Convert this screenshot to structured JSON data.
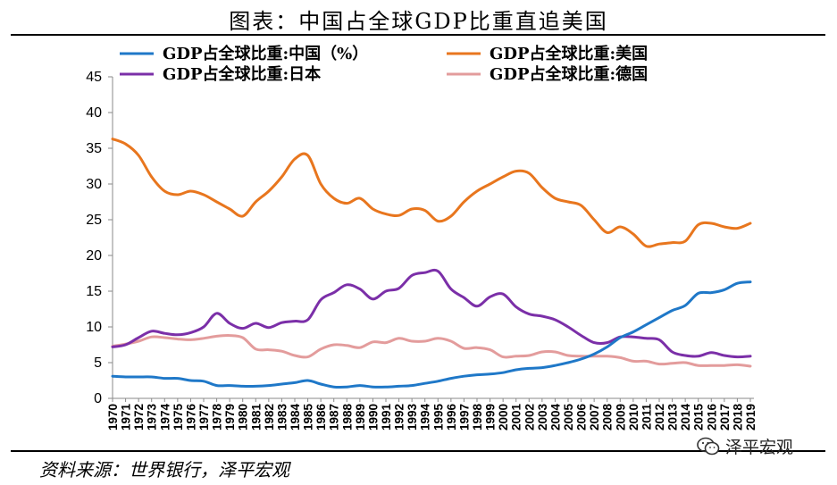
{
  "header": {
    "title": "图表：中国占全球GDP比重直追美国"
  },
  "footer": {
    "source": "资料来源：世界银行，泽平宏观",
    "watermark": "泽平宏观"
  },
  "chart_data": {
    "type": "line",
    "title": "图表：中国占全球GDP比重直追美国",
    "xlabel": "",
    "ylabel": "",
    "ylim": [
      0,
      45
    ],
    "yticks": [
      0,
      5,
      10,
      15,
      20,
      25,
      30,
      35,
      40,
      45
    ],
    "grid": false,
    "legend_position": "top",
    "categories": [
      "1970",
      "1971",
      "1972",
      "1973",
      "1974",
      "1975",
      "1976",
      "1977",
      "1978",
      "1979",
      "1980",
      "1981",
      "1982",
      "1983",
      "1984",
      "1985",
      "1986",
      "1987",
      "1988",
      "1989",
      "1990",
      "1991",
      "1992",
      "1993",
      "1994",
      "1995",
      "1996",
      "1997",
      "1998",
      "1999",
      "2000",
      "2001",
      "2002",
      "2003",
      "2004",
      "2005",
      "2006",
      "2007",
      "2008",
      "2009",
      "2010",
      "2011",
      "2012",
      "2013",
      "2014",
      "2015",
      "2016",
      "2017",
      "2018",
      "2019"
    ],
    "series": [
      {
        "name": "GDP占全球比重:中国（%）",
        "color": "#1f78c8",
        "values": [
          3.1,
          3.0,
          3.0,
          3.0,
          2.8,
          2.8,
          2.5,
          2.4,
          1.8,
          1.8,
          1.7,
          1.7,
          1.8,
          2.0,
          2.2,
          2.5,
          2.0,
          1.6,
          1.6,
          1.8,
          1.6,
          1.6,
          1.7,
          1.8,
          2.1,
          2.4,
          2.8,
          3.1,
          3.3,
          3.4,
          3.6,
          4.0,
          4.2,
          4.3,
          4.6,
          5.0,
          5.5,
          6.2,
          7.2,
          8.5,
          9.3,
          10.3,
          11.3,
          12.3,
          13.0,
          14.7,
          14.8,
          15.2,
          16.1,
          16.3
        ]
      },
      {
        "name": "GDP占全球比重:美国",
        "color": "#e8761e",
        "values": [
          36.3,
          35.6,
          34.0,
          31.0,
          29.0,
          28.5,
          29.0,
          28.5,
          27.5,
          26.5,
          25.5,
          27.5,
          29.0,
          31.0,
          33.5,
          34.0,
          30.0,
          28.0,
          27.3,
          28.0,
          26.5,
          25.8,
          25.6,
          26.5,
          26.3,
          24.8,
          25.5,
          27.5,
          29.0,
          30.0,
          31.0,
          31.8,
          31.5,
          29.5,
          28.0,
          27.5,
          27.0,
          25.0,
          23.2,
          24.0,
          23.0,
          21.3,
          21.6,
          21.8,
          22.0,
          24.3,
          24.5,
          24.0,
          23.8,
          24.5
        ]
      },
      {
        "name": "GDP占全球比重:日本",
        "color": "#7b2fa8",
        "values": [
          7.2,
          7.5,
          8.5,
          9.4,
          9.1,
          8.9,
          9.2,
          10.0,
          11.9,
          10.5,
          9.8,
          10.5,
          9.9,
          10.6,
          10.8,
          11.0,
          13.8,
          14.8,
          15.9,
          15.3,
          13.9,
          15.0,
          15.4,
          17.2,
          17.6,
          17.8,
          15.3,
          14.1,
          12.9,
          14.2,
          14.6,
          12.8,
          11.8,
          11.5,
          11.0,
          10.0,
          8.8,
          7.8,
          7.8,
          8.6,
          8.6,
          8.4,
          8.2,
          6.5,
          6.0,
          5.9,
          6.4,
          6.0,
          5.8,
          5.9
        ]
      },
      {
        "name": "GDP占全球比重:德国",
        "color": "#e39c9c",
        "values": [
          7.3,
          7.6,
          8.0,
          8.6,
          8.5,
          8.3,
          8.2,
          8.4,
          8.7,
          8.8,
          8.5,
          6.9,
          6.8,
          6.6,
          6.0,
          5.8,
          6.9,
          7.5,
          7.4,
          7.1,
          7.9,
          7.8,
          8.4,
          8.0,
          8.0,
          8.4,
          8.0,
          7.0,
          7.1,
          6.8,
          5.8,
          5.9,
          6.0,
          6.5,
          6.5,
          6.0,
          5.9,
          5.9,
          5.9,
          5.7,
          5.2,
          5.2,
          4.8,
          4.9,
          5.0,
          4.6,
          4.6,
          4.6,
          4.7,
          4.5
        ]
      }
    ]
  }
}
